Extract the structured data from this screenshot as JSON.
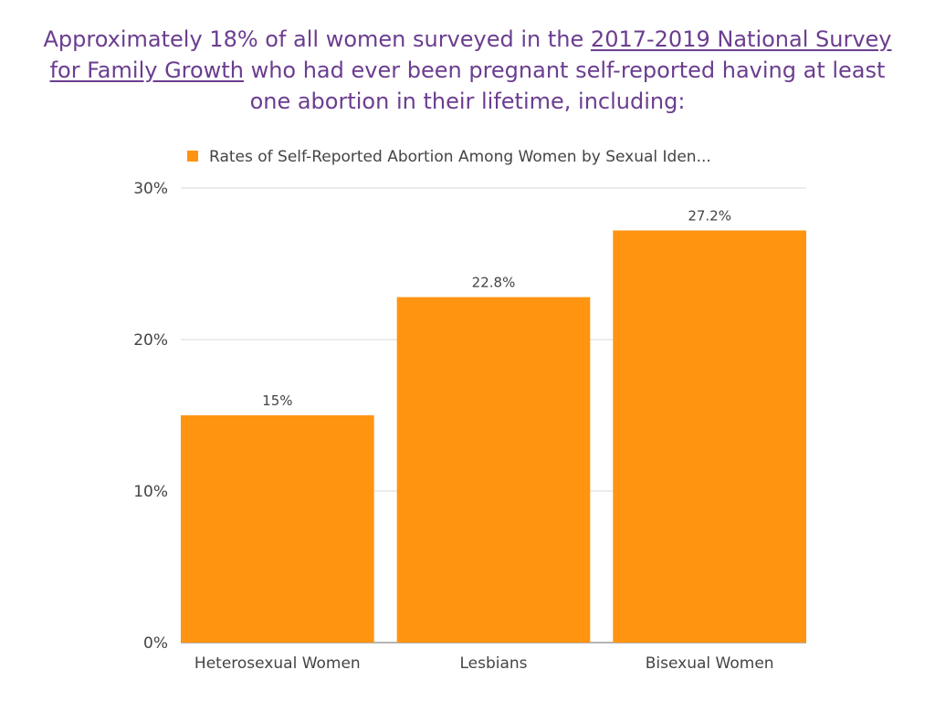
{
  "headline": {
    "text_before": "Approximately 18% of all women surveyed in the ",
    "link_text": "2017-2019 National Survey for Family Growth",
    "text_after": " who had ever been pregnant self-reported having at least one abortion in their lifetime, including:"
  },
  "colors": {
    "bar": "#ff9411",
    "headline": "#6b3d8f",
    "grid": "#d9d9d9",
    "axis": "#888888"
  },
  "chart_data": {
    "type": "bar",
    "legend": {
      "placement": "top",
      "label": "Rates of Self-Reported Abortion Among Women by Sexual Iden..."
    },
    "categories": [
      "Heterosexual Women",
      "Lesbians",
      "Bisexual Women"
    ],
    "series": [
      {
        "name": "Rates of Self-Reported Abortion Among Women by Sexual Iden...",
        "values": [
          15,
          22.8,
          27.2
        ],
        "data_labels": [
          "15%",
          "22.8%",
          "27.2%"
        ]
      }
    ],
    "ylim": [
      0,
      30
    ],
    "yticks": [
      0,
      10,
      20,
      30
    ],
    "ytick_labels": [
      "0%",
      "10%",
      "20%",
      "30%"
    ],
    "grid": true,
    "xlabel": "",
    "ylabel": ""
  }
}
